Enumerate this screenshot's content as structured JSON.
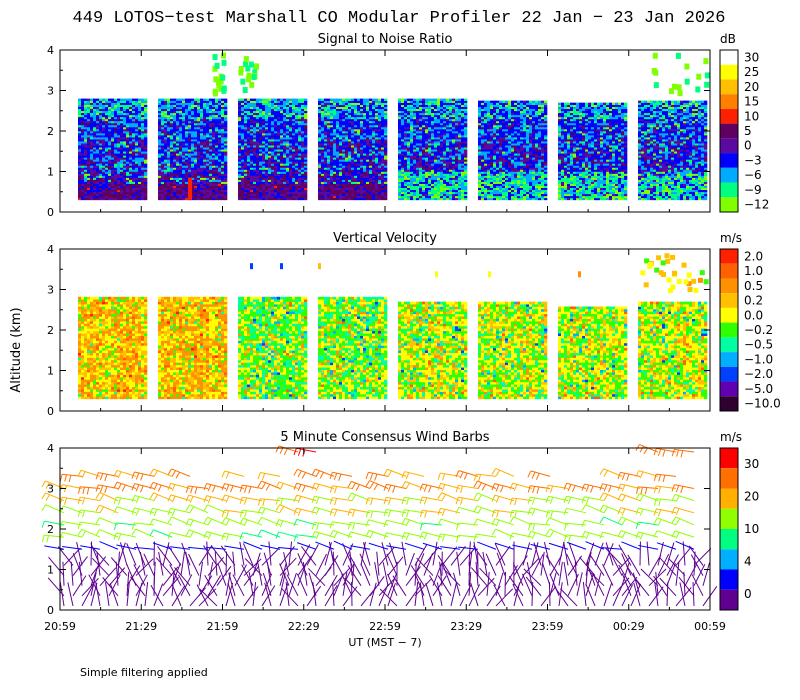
{
  "title": "449 LOTOS−test Marshall CO Modular Profiler 22 Jan − 23 Jan 2026",
  "ylabel": "Altitude (km)",
  "xlabel": "UT  (MST − 7)",
  "footnote": "Simple filtering applied",
  "x_ticks": [
    "20:59",
    "21:29",
    "21:59",
    "22:29",
    "22:59",
    "23:29",
    "23:59",
    "00:29",
    "00:59"
  ],
  "y_ticks": [
    "0",
    "1",
    "2",
    "3",
    "4"
  ],
  "chart_data": [
    {
      "type": "heatmap",
      "title": "Signal to Noise Ratio",
      "units": "dB",
      "ylim": [
        0,
        4
      ],
      "xlim": [
        "20:59",
        "00:59"
      ],
      "colorbar_labels": [
        "30",
        "25",
        "20",
        "15",
        "10",
        "5",
        "0",
        "−3",
        "−6",
        "−9",
        "−12"
      ],
      "colorbar_colors": [
        "#ffffff",
        "#ffff00",
        "#ffc000",
        "#ff8000",
        "#ff2000",
        "#600060",
        "#5a0aa0",
        "#0000ff",
        "#00aaff",
        "#00ff80",
        "#80ff00"
      ],
      "data_top_km": [
        2.75,
        2.75,
        2.75,
        2.75,
        2.75,
        2.7,
        2.65,
        2.7
      ],
      "data_bottom_km": 0.3
    },
    {
      "type": "heatmap",
      "title": "Vertical Velocity",
      "units": "m/s",
      "ylim": [
        0,
        4
      ],
      "xlim": [
        "20:59",
        "00:59"
      ],
      "colorbar_labels": [
        "2.0",
        "1.0",
        "0.5",
        "0.2",
        "0.0",
        "−0.2",
        "−0.5",
        "−1.0",
        "−2.0",
        "−5.0",
        "−10.0"
      ],
      "colorbar_colors": [
        "#ff2000",
        "#ff6000",
        "#ff9000",
        "#ffc000",
        "#ffff00",
        "#30ff00",
        "#00ffa0",
        "#00b0ff",
        "#0040ff",
        "#6000b0",
        "#300030"
      ],
      "data_top_km": [
        2.8,
        2.8,
        2.8,
        2.8,
        2.7,
        2.7,
        2.55,
        2.7
      ],
      "data_bottom_km": 0.3
    },
    {
      "type": "scatter",
      "title": "5 Minute Consensus Wind Barbs",
      "units": "m/s",
      "ylim": [
        0,
        4
      ],
      "xlim": [
        "20:59",
        "00:59"
      ],
      "colorbar_labels": [
        "30",
        "20",
        "10",
        "4",
        "0"
      ],
      "colorbar_colors": [
        "#ff0000",
        "#ff7000",
        "#ffb000",
        "#90ff00",
        "#00ff80",
        "#00b0ff",
        "#0000ff",
        "#600090"
      ],
      "levels_km": [
        0.1,
        0.35,
        0.6,
        0.85,
        1.1,
        1.5,
        1.8,
        2.1,
        2.4,
        2.7,
        3.0,
        3.3,
        3.9
      ],
      "speed_ms": [
        1,
        1,
        1,
        1,
        1,
        3,
        12,
        12,
        14,
        15,
        20,
        21,
        25
      ]
    }
  ]
}
